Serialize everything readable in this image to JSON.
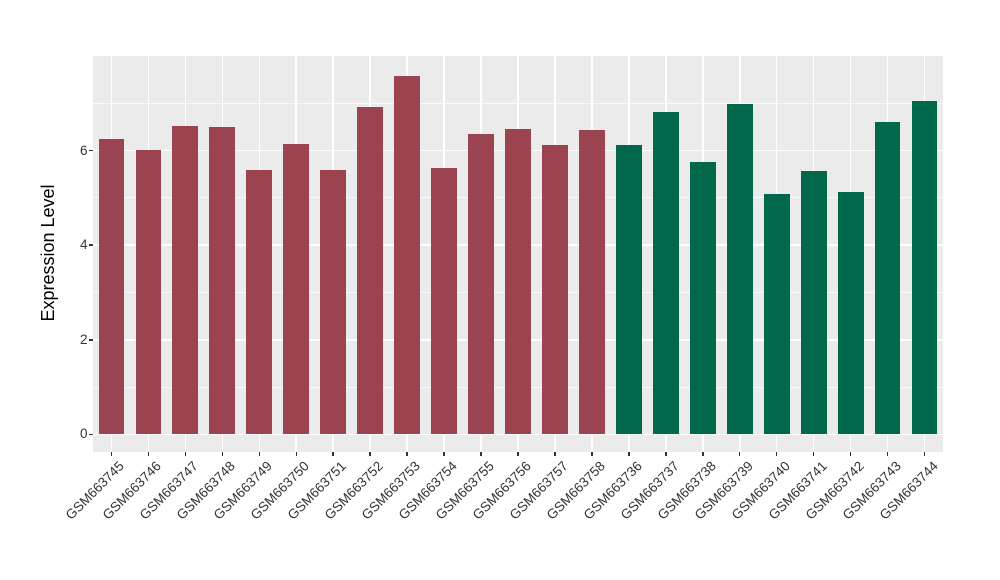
{
  "chart_data": {
    "type": "bar",
    "title": "",
    "xlabel": "",
    "ylabel": "Expression Level",
    "categories": [
      "GSM663745",
      "GSM663746",
      "GSM663747",
      "GSM663748",
      "GSM663749",
      "GSM663750",
      "GSM663751",
      "GSM663752",
      "GSM663753",
      "GSM663754",
      "GSM663755",
      "GSM663756",
      "GSM663757",
      "GSM663758",
      "GSM663736",
      "GSM663737",
      "GSM663738",
      "GSM663739",
      "GSM663740",
      "GSM663741",
      "GSM663742",
      "GSM663743",
      "GSM663744"
    ],
    "values": [
      6.24,
      6.02,
      6.52,
      6.49,
      5.58,
      6.13,
      5.58,
      6.92,
      7.58,
      5.64,
      6.35,
      6.45,
      6.11,
      6.43,
      6.12,
      6.81,
      5.76,
      6.98,
      5.08,
      5.57,
      5.13,
      6.61,
      7.05
    ],
    "bar_groups": [
      "red",
      "red",
      "red",
      "red",
      "red",
      "red",
      "red",
      "red",
      "red",
      "red",
      "red",
      "red",
      "red",
      "red",
      "green",
      "green",
      "green",
      "green",
      "green",
      "green",
      "green",
      "green",
      "green"
    ],
    "group_colors": {
      "red": "#9C4351",
      "green": "#02684B"
    },
    "yticks": [
      0,
      2,
      4,
      6
    ],
    "yticks_minor": [
      1,
      3,
      5,
      7
    ],
    "ylim": [
      -0.37,
      8.0
    ],
    "x_tick_rotation": 45,
    "legend_position": "none",
    "grid": true,
    "panel_background": "#EBEBEB",
    "gridline_color": "#FFFFFF",
    "axis_text_color": "#333333",
    "bar_width_fraction": 0.7
  }
}
